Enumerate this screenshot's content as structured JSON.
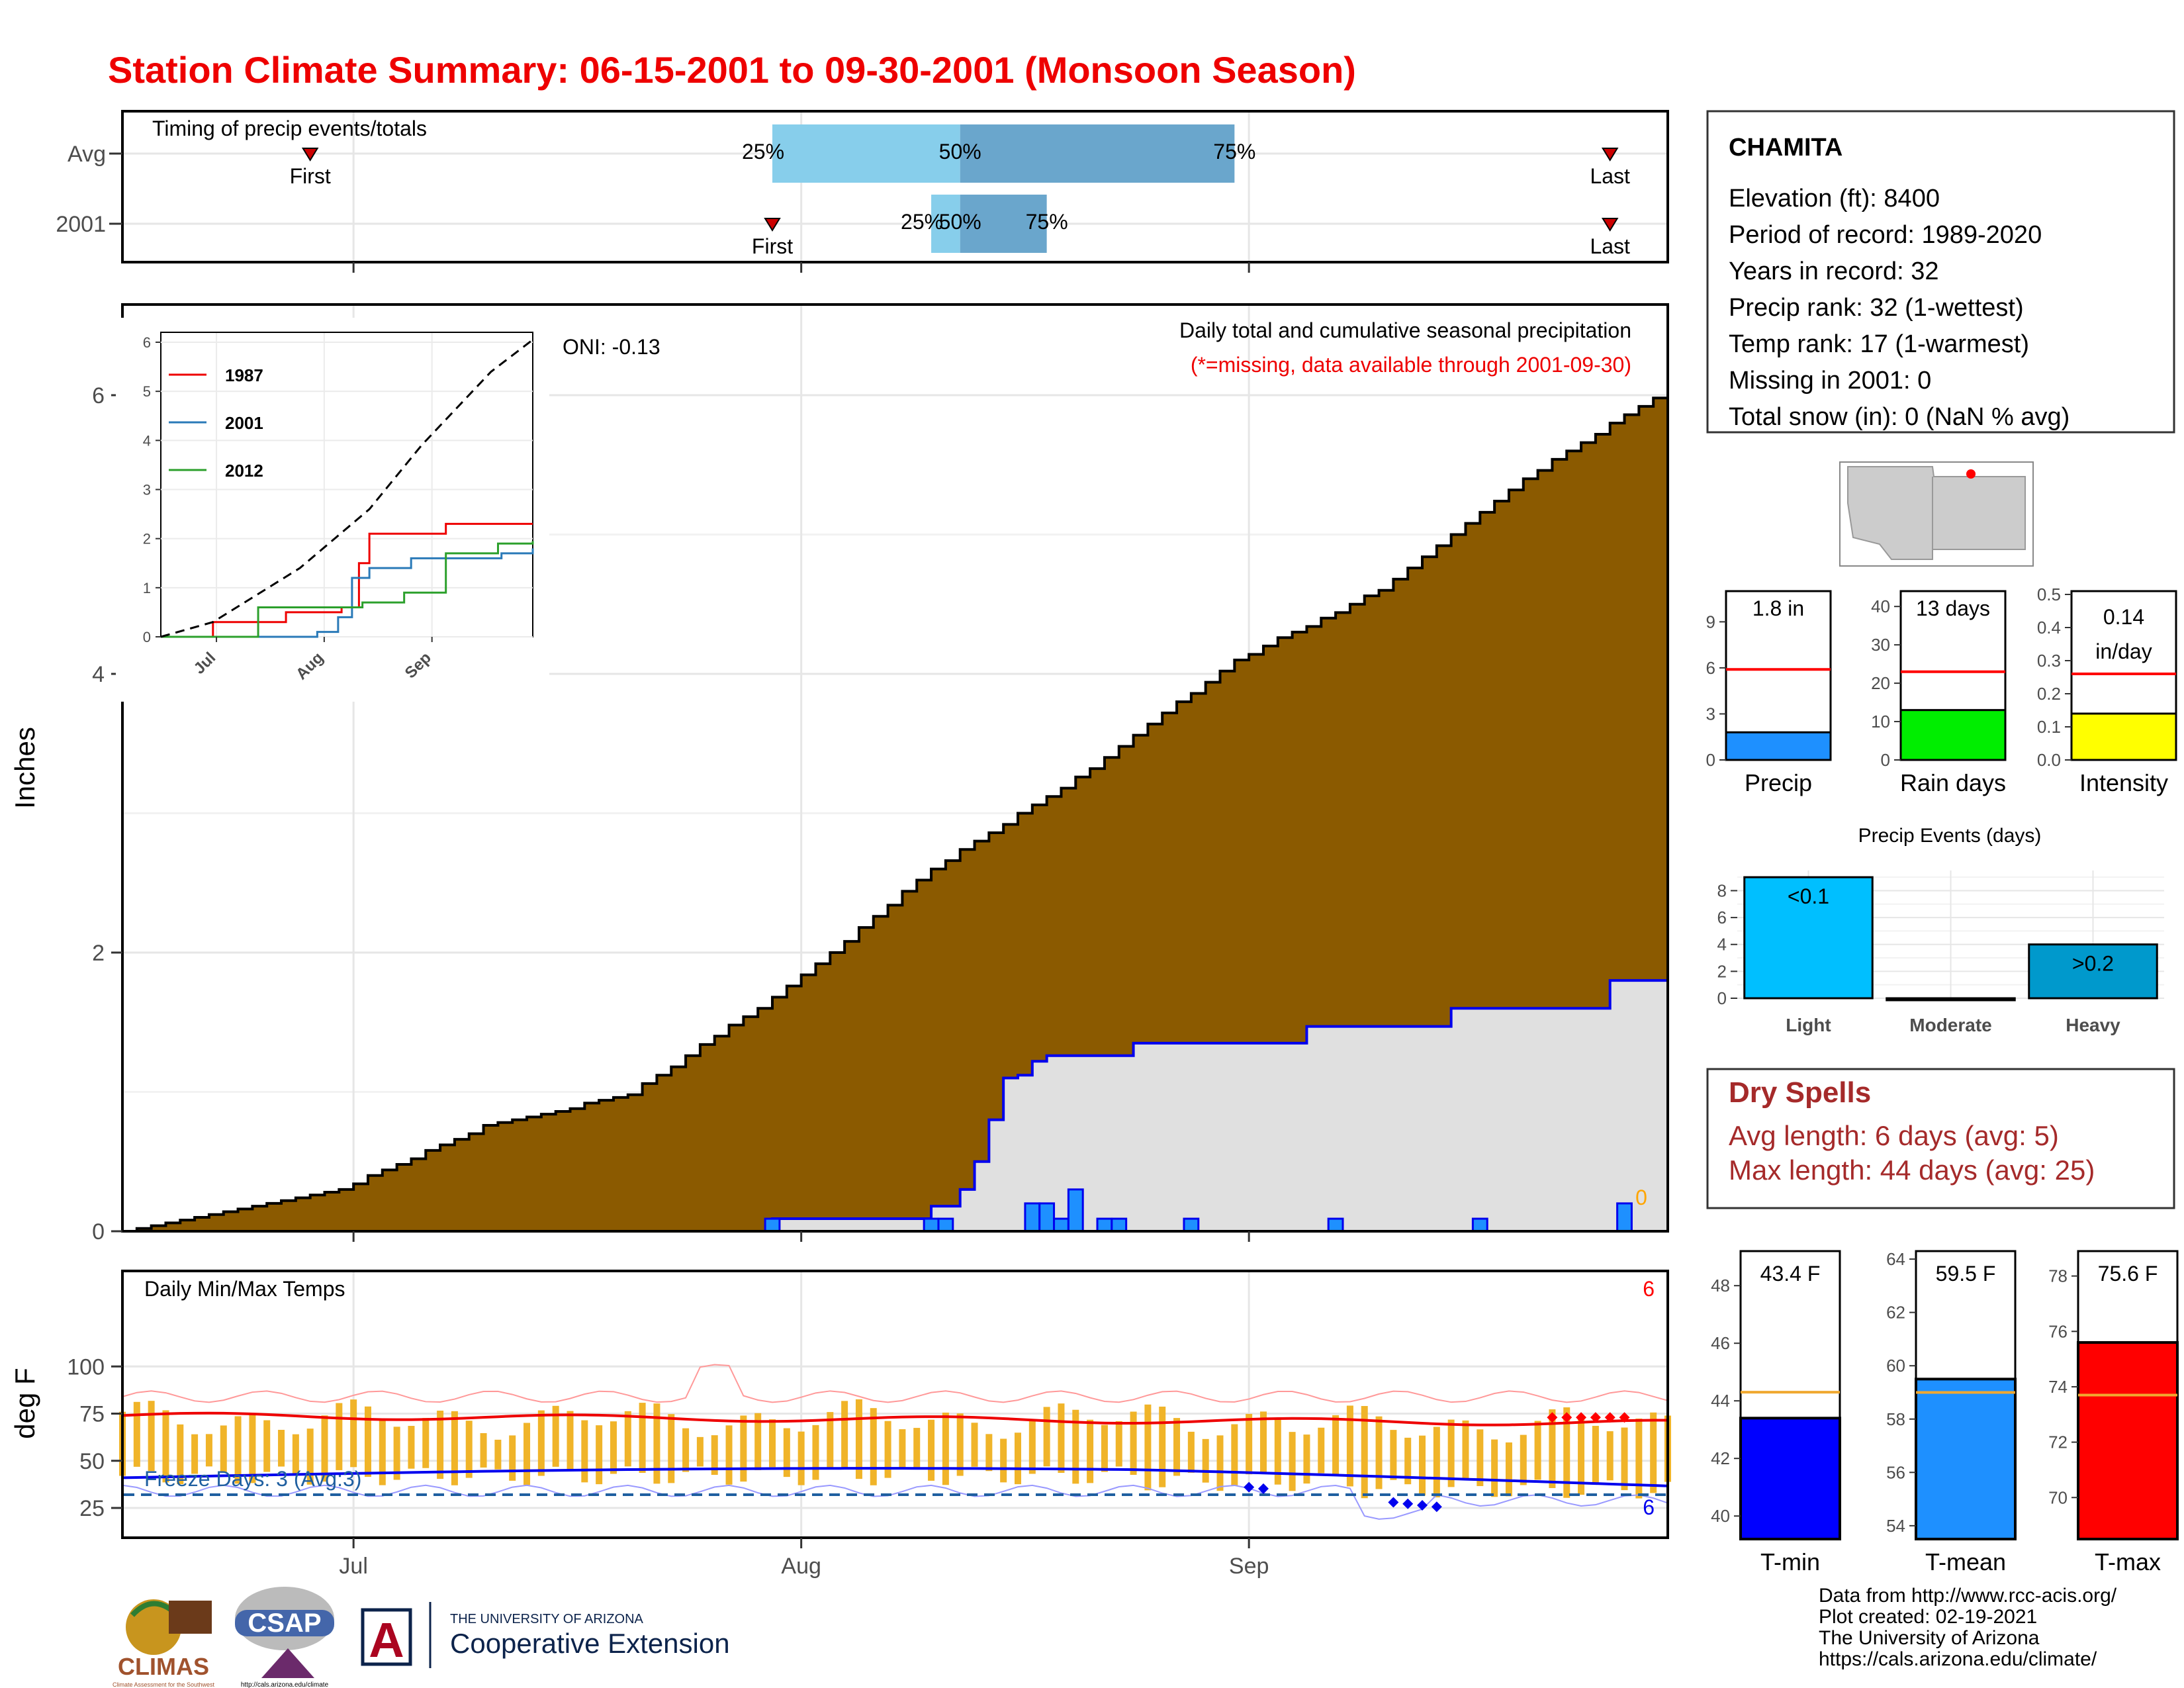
{
  "title": "Station Climate Summary: 06-15-2001 to 09-30-2001 (Monsoon Season)",
  "colors": {
    "title": "#ee0000",
    "precip_fill": "#8b5a00",
    "avg_line": "#0000ee",
    "bar_blue": "#1e90ff",
    "q1": "#87ceeb",
    "q2": "#6aa6cc",
    "dry_red": "#a52a2a",
    "tmax_red": "#ff0000",
    "orange": "#f0a830"
  },
  "timing": {
    "label": "Timing of precip events/totals",
    "rows": [
      "Avg",
      "2001"
    ],
    "first_label": "First",
    "last_label": "Last",
    "p25": "25%",
    "p50": "50%",
    "p75": "75%",
    "avg": {
      "first": "2001-06-28",
      "p25": "2001-07-30",
      "p50": "2001-08-12",
      "p75": "2001-08-31",
      "last": "2001-09-26"
    },
    "yr2001": {
      "first": "2001-07-30",
      "p25": "2001-08-10",
      "p50": "2001-08-12",
      "p75": "2001-08-18",
      "last": "2001-09-26"
    }
  },
  "precip": {
    "ylabel": "Inches",
    "oni": "ONI: -0.13",
    "caption": "Daily total and cumulative seasonal precipitation",
    "missing_note": "(*=missing, data available through 2001-09-30)",
    "missing_count": "0",
    "yticks": [
      "0",
      "2",
      "4",
      "6"
    ],
    "xticks": [
      "Jul",
      "Aug",
      "Sep"
    ]
  },
  "inset": {
    "legend": [
      "1987",
      "2001",
      "2012"
    ],
    "yticks": [
      "0",
      "1",
      "2",
      "3",
      "4",
      "5",
      "6"
    ],
    "xticks": [
      "Jul",
      "Aug",
      "Sep"
    ]
  },
  "temps": {
    "caption": "Daily Min/Max Temps",
    "ylabel": "deg F",
    "yticks": [
      "25",
      "50",
      "75",
      "100"
    ],
    "xticks": [
      "Jul",
      "Aug",
      "Sep"
    ],
    "freeze": "Freeze Days: 3 (Avg:3)",
    "max_count": "6",
    "min_count": "6"
  },
  "station": {
    "name": "CHAMITA",
    "lines": [
      "Elevation (ft): 8400",
      "Period of record: 1989-2020",
      "Years in record: 32",
      "Precip rank: 32 (1-wettest)",
      "Temp rank: 17 (1-warmest)",
      "Missing in 2001: 0",
      "Total snow (in): 0 (NaN % avg)"
    ]
  },
  "summary_bars": [
    {
      "label": "Precip",
      "value_label": "1.8 in",
      "value": 1.8,
      "avg": 5.9,
      "ymax": 11,
      "yticks": [
        "0",
        "3",
        "6",
        "9"
      ],
      "tickvals": [
        0,
        3,
        6,
        9
      ]
    },
    {
      "label": "Rain days",
      "value_label": "13 days",
      "value": 13,
      "avg": 23,
      "ymax": 44,
      "yticks": [
        "0",
        "10",
        "20",
        "30",
        "40"
      ],
      "tickvals": [
        0,
        10,
        20,
        30,
        40
      ]
    },
    {
      "label": "Intensity",
      "value_label": "0.14 in/day",
      "value_line1": "0.14",
      "value_line2": "in/day",
      "value": 0.14,
      "avg": 0.26,
      "ymax": 0.51,
      "yticks": [
        "0.0",
        "0.1",
        "0.2",
        "0.3",
        "0.4",
        "0.5"
      ],
      "tickvals": [
        0,
        0.1,
        0.2,
        0.3,
        0.4,
        0.5
      ]
    }
  ],
  "precip_events": {
    "title": "Precip Events (days)",
    "categories": [
      "Light",
      "Moderate",
      "Heavy"
    ],
    "values": [
      9,
      0,
      4
    ],
    "bar_labels": [
      "<0.1",
      "",
      ">0.2"
    ],
    "yticks": [
      "0",
      "2",
      "4",
      "6",
      "8"
    ]
  },
  "dry_spells": {
    "title": "Dry Spells",
    "avg_line": "Avg length: 6 days (avg: 5)",
    "max_line": "Max length: 44 days (avg: 25)"
  },
  "temp_bars": [
    {
      "label": "T-min",
      "value_label": "43.4 F",
      "value": 43.4,
      "avg": 44.3,
      "ymin": 39.2,
      "ymax": 49.2,
      "yticks": [
        "40",
        "42",
        "44",
        "46",
        "48"
      ],
      "tickvals": [
        40,
        42,
        44,
        46,
        48
      ],
      "color": "#0000ff"
    },
    {
      "label": "T-mean",
      "value_label": "59.5 F",
      "value": 59.5,
      "avg": 59.0,
      "ymin": 53.5,
      "ymax": 64.3,
      "yticks": [
        "54",
        "56",
        "58",
        "60",
        "62",
        "64"
      ],
      "tickvals": [
        54,
        56,
        58,
        60,
        62,
        64
      ],
      "color": "#1e90ff"
    },
    {
      "label": "T-max",
      "value_label": "75.6 F",
      "value": 75.6,
      "avg": 73.7,
      "ymin": 68.5,
      "ymax": 78.9,
      "yticks": [
        "70",
        "72",
        "74",
        "76",
        "78"
      ],
      "tickvals": [
        70,
        72,
        74,
        76,
        78
      ],
      "color": "#ff0000"
    }
  ],
  "credits": [
    "Data from http://www.rcc-acis.org/",
    "Plot created: 02-19-2021",
    "The University of Arizona",
    "https://cals.arizona.edu/climate/"
  ],
  "logos": {
    "climas": "CLIMAS",
    "climas_sub": "Climate Assessment for the Southwest",
    "csap": "CSAP",
    "csap_url": "http://cals.arizona.edu/climate",
    "ua_letter": "A",
    "ua_line1": "THE UNIVERSITY OF ARIZONA",
    "ua_line2": "Cooperative Extension"
  },
  "chart_data": {
    "type": "area",
    "title": "Daily total and cumulative seasonal precipitation",
    "ylabel": "Inches",
    "ylim": [
      0,
      6.6
    ],
    "x_range": [
      "2001-06-15",
      "2001-09-30"
    ],
    "series": [
      {
        "name": "",
        "kind": "cumulative average (filled)",
        "x_days_from_start_marker": "2001-06-15..2001-09-30",
        "points": [
          [
            "2001-06-15",
            0.0
          ],
          [
            "2001-06-30",
            0.3
          ],
          [
            "2001-07-10",
            0.75
          ],
          [
            "2001-07-20",
            0.98
          ],
          [
            "2001-07-31",
            1.75
          ],
          [
            "2001-08-10",
            2.6
          ],
          [
            "2001-08-20",
            3.25
          ],
          [
            "2001-08-31",
            4.1
          ],
          [
            "2001-09-10",
            4.6
          ],
          [
            "2001-09-20",
            5.4
          ],
          [
            "2001-09-30",
            6.05
          ]
        ]
      },
      {
        "name": "2001",
        "kind": "cumulative 2001 (step)",
        "points": [
          [
            "2001-06-15",
            0.0
          ],
          [
            "2001-07-29",
            0.0
          ],
          [
            "2001-07-30",
            0.09
          ],
          [
            "2001-08-09",
            0.09
          ],
          [
            "2001-08-10",
            0.18
          ],
          [
            "2001-08-12",
            0.3
          ],
          [
            "2001-08-13",
            0.5
          ],
          [
            "2001-08-14",
            0.8
          ],
          [
            "2001-08-15",
            1.1
          ],
          [
            "2001-08-16",
            1.12
          ],
          [
            "2001-08-17",
            1.22
          ],
          [
            "2001-08-18",
            1.26
          ],
          [
            "2001-08-24",
            1.35
          ],
          [
            "2001-09-05",
            1.47
          ],
          [
            "2001-09-15",
            1.6
          ],
          [
            "2001-09-26",
            1.8
          ],
          [
            "2001-09-30",
            1.8
          ]
        ]
      }
    ],
    "daily_bars": [
      [
        "2001-07-30",
        0.09
      ],
      [
        "2001-08-10",
        0.09
      ],
      [
        "2001-08-11",
        0.09
      ],
      [
        "2001-08-17",
        0.2
      ],
      [
        "2001-08-18",
        0.2
      ],
      [
        "2001-08-19",
        0.09
      ],
      [
        "2001-08-20",
        0.3
      ],
      [
        "2001-08-22",
        0.09
      ],
      [
        "2001-08-23",
        0.09
      ],
      [
        "2001-08-28",
        0.09
      ],
      [
        "2001-09-07",
        0.09
      ],
      [
        "2001-09-17",
        0.09
      ],
      [
        "2001-09-27",
        0.2
      ]
    ],
    "inset": {
      "type": "line",
      "ylim": [
        0,
        6
      ],
      "series": [
        {
          "name": "1987",
          "points": [
            [
              0,
              0
            ],
            [
              15,
              0.3
            ],
            [
              36,
              0.5
            ],
            [
              52,
              0.6
            ],
            [
              57,
              1.5
            ],
            [
              60,
              2.1
            ],
            [
              82,
              2.3
            ],
            [
              107,
              2.3
            ]
          ]
        },
        {
          "name": "2001",
          "points": [
            [
              0,
              0
            ],
            [
              45,
              0.1
            ],
            [
              51,
              0.4
            ],
            [
              55,
              1.2
            ],
            [
              60,
              1.4
            ],
            [
              72,
              1.6
            ],
            [
              98,
              1.7
            ],
            [
              107,
              1.8
            ]
          ]
        },
        {
          "name": "2012",
          "points": [
            [
              0,
              0
            ],
            [
              28,
              0.6
            ],
            [
              58,
              0.7
            ],
            [
              70,
              0.9
            ],
            [
              82,
              1.7
            ],
            [
              97,
              1.9
            ],
            [
              107,
              1.95
            ]
          ]
        }
      ],
      "average": {
        "name": "",
        "points": [
          [
            0,
            0
          ],
          [
            15,
            0.3
          ],
          [
            40,
            1.4
          ],
          [
            60,
            2.6
          ],
          [
            75,
            3.9
          ],
          [
            95,
            5.4
          ],
          [
            107,
            6.05
          ]
        ]
      }
    },
    "temps": {
      "type": "line",
      "ylim": [
        5,
        110
      ],
      "avg_tmax": 72,
      "avg_tmin": 42,
      "freeze_line": 32
    }
  }
}
